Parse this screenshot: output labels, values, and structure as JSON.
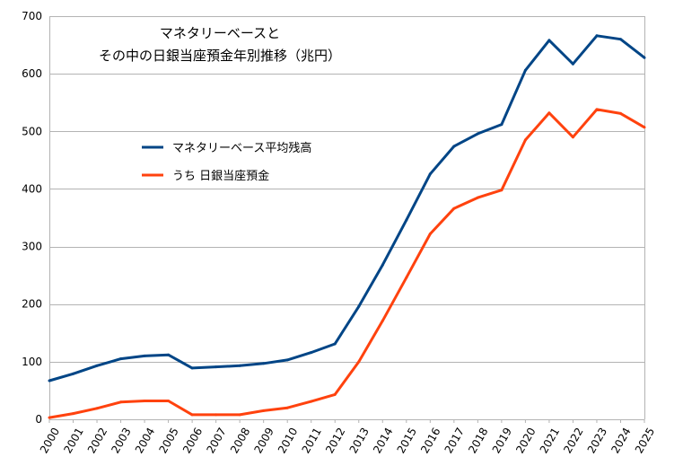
{
  "chart_data": {
    "type": "line",
    "title_lines": [
      "マネタリーベースと",
      "その中の日銀当座預金年別推移（兆円）"
    ],
    "xlabel": "",
    "ylabel": "",
    "ylim": [
      0,
      700
    ],
    "yticks": [
      0,
      100,
      200,
      300,
      400,
      500,
      600,
      700
    ],
    "grid": true,
    "legend_placement": "upper-left-inside",
    "categories": [
      "2000",
      "2001",
      "2002",
      "2003",
      "2004",
      "2005",
      "2006",
      "2007",
      "2008",
      "2009",
      "2010",
      "2011",
      "2012",
      "2013",
      "2014",
      "2015",
      "2016",
      "2017",
      "2018",
      "2019",
      "2020",
      "2021",
      "2022",
      "2023",
      "2024",
      "2025"
    ],
    "series": [
      {
        "name": "マネタリーベース平均残高",
        "color": "#004586",
        "values": [
          67,
          79,
          93,
          105,
          110,
          112,
          89,
          91,
          93,
          97,
          103,
          116,
          131,
          196,
          268,
          346,
          426,
          474,
          496,
          512,
          606,
          658,
          617,
          666,
          660,
          628
        ]
      },
      {
        "name": "うち 日銀当座預金",
        "color": "#ff420e",
        "values": [
          3,
          10,
          19,
          30,
          32,
          32,
          8,
          8,
          8,
          15,
          20,
          31,
          43,
          100,
          171,
          246,
          322,
          366,
          385,
          398,
          485,
          532,
          490,
          538,
          531,
          507
        ]
      }
    ]
  }
}
